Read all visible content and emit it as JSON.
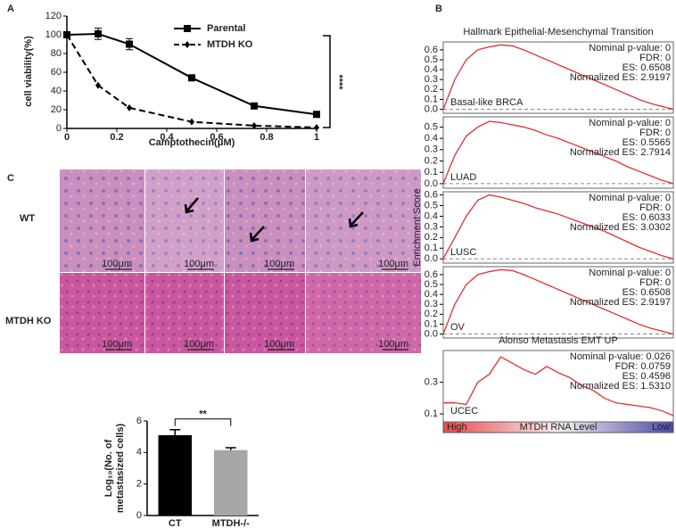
{
  "panel_labels": [
    "A",
    "B",
    "C"
  ],
  "histology": {
    "row_labels": [
      "WT",
      "MTDH KO"
    ],
    "scale_bars": [
      "100μm",
      "100μm",
      "100μm",
      "100μm",
      "100μm",
      "100μm",
      "100μm",
      "100μm"
    ]
  },
  "chart_data": [
    {
      "type": "line",
      "xlabel": "Camptothecin(μM)",
      "ylabel": "cell viability(%)",
      "x": [
        0,
        0.125,
        0.25,
        0.5,
        0.75,
        1
      ],
      "series": [
        {
          "name": "Parental",
          "color": "#000000",
          "line_style": "solid",
          "marker": "square",
          "values": [
            100,
            101,
            90,
            54,
            24,
            15
          ],
          "errors": [
            3,
            6,
            6,
            1,
            1,
            1
          ]
        },
        {
          "name": "MTDH KO",
          "color": "#000000",
          "line_style": "dashed",
          "marker": "diamond",
          "values": [
            100,
            46,
            22,
            7,
            3,
            1
          ]
        }
      ],
      "xlim": [
        0,
        1
      ],
      "xticks": [
        0,
        0.2,
        0.4,
        0.6,
        0.8,
        1
      ],
      "ylim": [
        0,
        120
      ],
      "yticks": [
        0,
        20,
        40,
        60,
        80,
        100,
        120
      ],
      "annotation": "****"
    },
    {
      "type": "line",
      "title": "Hallmark Epithelial-Mesenchymal Transition",
      "ylabel": "Enrichment Score",
      "label": "Basal-like BRCA",
      "color": "#e03030",
      "stats": [
        "Nominal p-value: 0",
        "FDR: 0",
        "ES: 0.6508",
        "Normalized ES: 2.9197"
      ],
      "values": [
        0,
        0.3,
        0.5,
        0.6,
        0.63,
        0.65,
        0.64,
        0.6,
        0.55,
        0.5,
        0.45,
        0.4,
        0.35,
        0.3,
        0.25,
        0.2,
        0.15,
        0.1,
        0.06,
        0.03,
        0
      ],
      "ylim": [
        -0.04,
        0.68
      ],
      "yticks": [
        {
          "value": 0,
          "label": "0.0"
        },
        0.1,
        0.2,
        0.3,
        0.4,
        0.5,
        0.6
      ]
    },
    {
      "type": "line",
      "label": "LUAD",
      "color": "#e03030",
      "stats": [
        "Nominal p-value: 0",
        "FDR: 0",
        "ES: 0.5565",
        "Normalized ES: 2.7914"
      ],
      "values": [
        0,
        0.25,
        0.42,
        0.5,
        0.55,
        0.54,
        0.52,
        0.5,
        0.47,
        0.43,
        0.4,
        0.36,
        0.32,
        0.28,
        0.24,
        0.2,
        0.15,
        0.11,
        0.07,
        0.03,
        0
      ],
      "ylim": [
        -0.04,
        0.59
      ],
      "yticks": [
        {
          "value": 0,
          "label": "0.0"
        },
        0.1,
        0.2,
        0.3,
        0.4,
        0.5
      ]
    },
    {
      "type": "line",
      "label": "LUSC",
      "color": "#e03030",
      "stats": [
        "Nominal p-value: 0",
        "FDR: 0",
        "ES: 0.6033",
        "Normalized ES: 3.0302"
      ],
      "values": [
        0,
        0.2,
        0.4,
        0.55,
        0.6,
        0.58,
        0.55,
        0.52,
        0.48,
        0.45,
        0.42,
        0.38,
        0.34,
        0.3,
        0.26,
        0.21,
        0.16,
        0.11,
        0.07,
        0.03,
        0
      ],
      "ylim": [
        -0.04,
        0.63
      ],
      "yticks": [
        {
          "value": 0,
          "label": "0.0"
        },
        0.1,
        0.2,
        0.3,
        0.4,
        0.5,
        0.6
      ]
    },
    {
      "type": "line",
      "label": "OV",
      "color": "#e03030",
      "stats": [
        "Nominal p-value: 0",
        "FDR: 0",
        "ES: 0.6508",
        "Normalized ES: 2.9197"
      ],
      "values": [
        0,
        0.3,
        0.5,
        0.6,
        0.63,
        0.65,
        0.64,
        0.6,
        0.55,
        0.5,
        0.45,
        0.4,
        0.35,
        0.3,
        0.25,
        0.2,
        0.15,
        0.1,
        0.06,
        0.03,
        0
      ],
      "ylim": [
        -0.04,
        0.68
      ],
      "yticks": [
        {
          "value": 0,
          "label": "0.0"
        },
        0.1,
        0.2,
        0.3,
        0.4,
        0.5,
        0.6
      ]
    },
    {
      "type": "line",
      "title": "Alonso Metastasis EMT UP",
      "label": "UCEC",
      "color": "#e03030",
      "stats": [
        "Nominal p-value: 0.026",
        "FDR: 0.0759",
        "ES: 0.4596",
        "Normalized ES: 1.5310"
      ],
      "values": [
        0.17,
        0.17,
        0.16,
        0.3,
        0.35,
        0.46,
        0.42,
        0.38,
        0.35,
        0.4,
        0.36,
        0.33,
        0.28,
        0.25,
        0.2,
        0.17,
        0.16,
        0.15,
        0.14,
        0.12,
        0.09
      ],
      "ylim": [
        0.05,
        0.5
      ],
      "yticks": [
        0.1,
        0.3
      ],
      "gradient_labels": [
        "High",
        "MTDH RNA Level",
        "Low"
      ]
    },
    {
      "type": "bar",
      "ylabel": [
        "Log₁₀(No. of",
        "metastasized cells)"
      ],
      "categories": [
        "CT",
        "MTDH-/-"
      ],
      "values": [
        5.1,
        4.15
      ],
      "errors": [
        0.35,
        0.15
      ],
      "colors": [
        "#000000",
        "#a6a6a8"
      ],
      "ylim": [
        0,
        6
      ],
      "yticks": [
        0,
        2,
        4,
        6
      ],
      "annotation": "**"
    }
  ]
}
